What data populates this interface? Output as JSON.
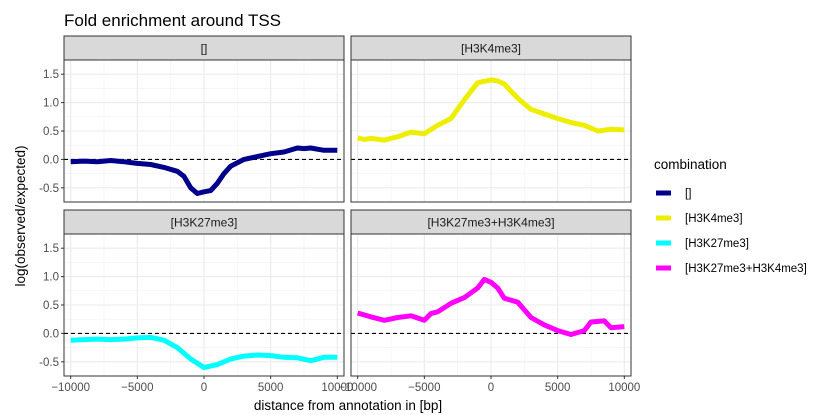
{
  "chart_data": {
    "type": "line",
    "title": "Fold enrichment around TSS",
    "xlabel": "distance from annotation in [bp]",
    "ylabel": "log(observed/expected)",
    "xlim": [
      -10500,
      10500
    ],
    "ylim": [
      -0.75,
      1.75
    ],
    "x_ticks": [
      -10000,
      -5000,
      0,
      5000,
      10000
    ],
    "x_tick_labels": [
      "−10000",
      "−5000",
      "0",
      "5000",
      "10000"
    ],
    "y_ticks": [
      -0.5,
      0.0,
      0.5,
      1.0,
      1.5
    ],
    "y_tick_labels": [
      "-0.5",
      "0.0",
      "0.5",
      "1.0",
      "1.5"
    ],
    "reference_line": 0,
    "grid": true,
    "legend": {
      "title": "combination",
      "placement": "right",
      "entries": [
        {
          "label": "[]",
          "color": "#00008B"
        },
        {
          "label": "[H3K4me3]",
          "color": "#EEEE00"
        },
        {
          "label": "[H3K27me3]",
          "color": "#00FFFF"
        },
        {
          "label": "[H3K27me3+H3K4me3]",
          "color": "#FF00FF"
        }
      ]
    },
    "panels": [
      {
        "strip": "[]",
        "color": "#00008B",
        "x": [
          -10000,
          -9000,
          -8000,
          -7000,
          -6000,
          -5000,
          -4000,
          -3000,
          -2000,
          -1500,
          -1000,
          -500,
          0,
          500,
          1000,
          1500,
          2000,
          3000,
          4000,
          5000,
          6000,
          7000,
          7500,
          8000,
          9000,
          10000
        ],
        "y": [
          -0.04,
          -0.03,
          -0.04,
          -0.02,
          -0.04,
          -0.07,
          -0.09,
          -0.14,
          -0.21,
          -0.3,
          -0.5,
          -0.6,
          -0.57,
          -0.55,
          -0.42,
          -0.25,
          -0.12,
          0.0,
          0.05,
          0.1,
          0.13,
          0.2,
          0.19,
          0.2,
          0.16,
          0.16
        ]
      },
      {
        "strip": "[H3K4me3]",
        "color": "#EEEE00",
        "x": [
          -10000,
          -9500,
          -9000,
          -8000,
          -7000,
          -6000,
          -5000,
          -4000,
          -3000,
          -2000,
          -1000,
          0,
          500,
          1000,
          1500,
          2000,
          3000,
          4000,
          5000,
          6000,
          7000,
          8000,
          9000,
          10000
        ],
        "y": [
          0.38,
          0.35,
          0.37,
          0.34,
          0.4,
          0.48,
          0.45,
          0.6,
          0.72,
          1.05,
          1.35,
          1.4,
          1.38,
          1.33,
          1.2,
          1.08,
          0.88,
          0.8,
          0.72,
          0.65,
          0.6,
          0.5,
          0.53,
          0.52
        ]
      },
      {
        "strip": "[H3K27me3]",
        "color": "#00FFFF",
        "x": [
          -10000,
          -9000,
          -8000,
          -7000,
          -6000,
          -5000,
          -4000,
          -3000,
          -2000,
          -1000,
          0,
          1000,
          2000,
          3000,
          4000,
          5000,
          6000,
          7000,
          8000,
          9000,
          10000
        ],
        "y": [
          -0.12,
          -0.11,
          -0.1,
          -0.11,
          -0.1,
          -0.08,
          -0.07,
          -0.12,
          -0.25,
          -0.45,
          -0.6,
          -0.55,
          -0.45,
          -0.4,
          -0.38,
          -0.39,
          -0.42,
          -0.43,
          -0.48,
          -0.42,
          -0.42
        ]
      },
      {
        "strip": "[H3K27me3+H3K4me3]",
        "color": "#FF00FF",
        "x": [
          -10000,
          -9000,
          -8000,
          -7000,
          -6000,
          -5000,
          -4500,
          -4000,
          -3000,
          -2000,
          -1000,
          -500,
          0,
          500,
          1000,
          2000,
          3000,
          4000,
          5000,
          6000,
          7000,
          7500,
          8500,
          9000,
          10000
        ],
        "y": [
          0.36,
          0.29,
          0.23,
          0.28,
          0.31,
          0.23,
          0.35,
          0.38,
          0.53,
          0.63,
          0.8,
          0.95,
          0.9,
          0.8,
          0.62,
          0.55,
          0.28,
          0.15,
          0.05,
          -0.02,
          0.05,
          0.2,
          0.22,
          0.1,
          0.12
        ]
      }
    ]
  }
}
